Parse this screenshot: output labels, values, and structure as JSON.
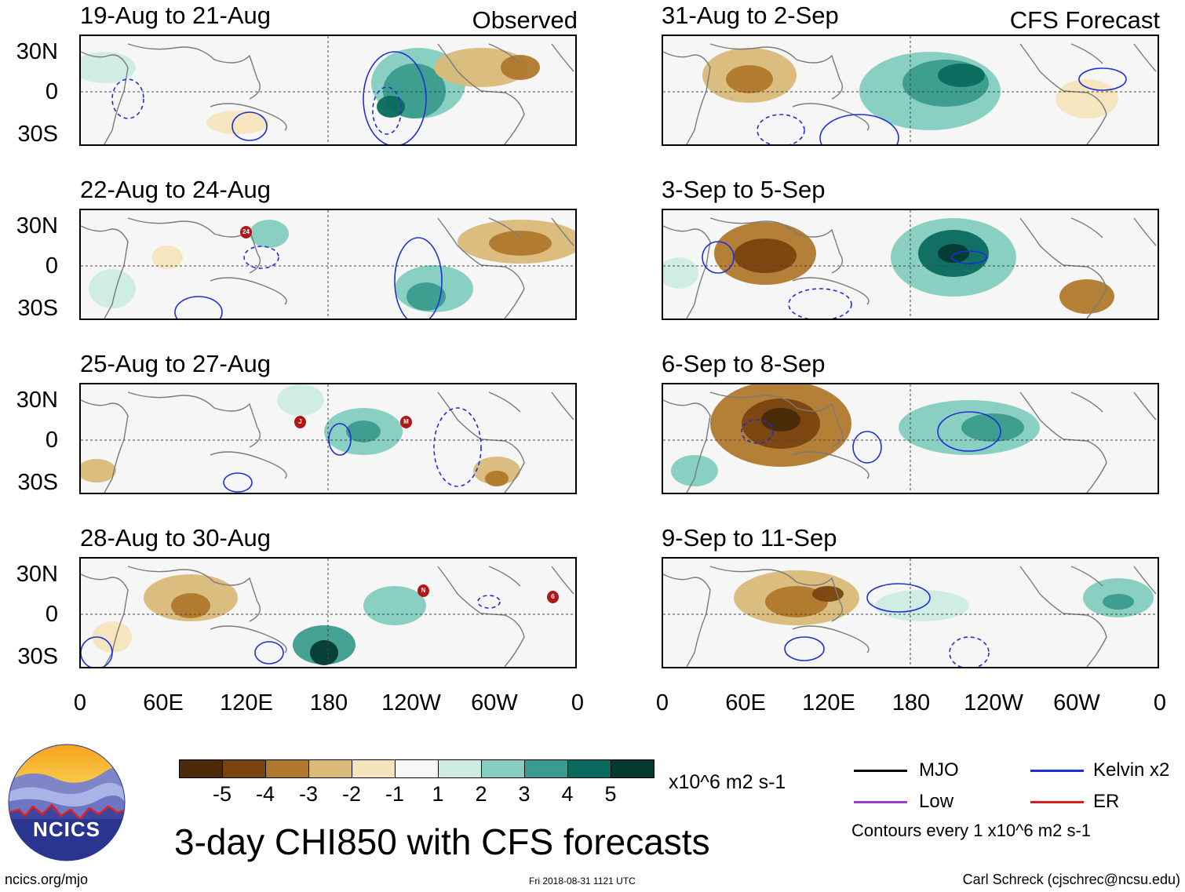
{
  "panels": {
    "left": [
      {
        "title": "19-Aug to 21-Aug",
        "label": "Observed"
      },
      {
        "title": "22-Aug to 24-Aug",
        "label": ""
      },
      {
        "title": "25-Aug to 27-Aug",
        "label": ""
      },
      {
        "title": "28-Aug to 30-Aug",
        "label": ""
      }
    ],
    "right": [
      {
        "title": "31-Aug to 2-Sep",
        "label": "CFS Forecast"
      },
      {
        "title": "3-Sep to 5-Sep",
        "label": ""
      },
      {
        "title": "6-Sep to 8-Sep",
        "label": ""
      },
      {
        "title": "9-Sep to 11-Sep",
        "label": ""
      }
    ]
  },
  "axes": {
    "lat_labels": [
      "30N",
      "0",
      "30S"
    ],
    "lon_labels": [
      "0",
      "60E",
      "120E",
      "180",
      "120W",
      "60W",
      "0"
    ]
  },
  "storm_markers": [
    {
      "panel": "left-2",
      "text": "24"
    },
    {
      "panel": "left-3",
      "text": "J"
    },
    {
      "panel": "left-3",
      "text": "M"
    },
    {
      "panel": "left-4",
      "text": "N"
    },
    {
      "panel": "left-4",
      "text": "6"
    }
  ],
  "colorbar": {
    "colors": [
      "#4a2a08",
      "#7a4510",
      "#b0782c",
      "#d9ba78",
      "#f4e5bd",
      "#f7f7f7",
      "#cdece4",
      "#84cdbf",
      "#3a9c8e",
      "#0b6a5e",
      "#053a31"
    ],
    "labels": [
      "-5",
      "-4",
      "-3",
      "-2",
      "-1",
      "1",
      "2",
      "3",
      "4",
      "5"
    ],
    "units": "x10^6 m2 s-1"
  },
  "title": "3-day CHI850 with CFS forecasts",
  "legend": [
    {
      "label": "MJO",
      "color": "#000000"
    },
    {
      "label": "Kelvin x2",
      "color": "#1f2fd6"
    },
    {
      "label": "Low",
      "color": "#9a3fd6"
    },
    {
      "label": "ER",
      "color": "#d61f1f"
    }
  ],
  "contour_note": "Contours every 1 x10^6 m2 s-1",
  "logo_text": "NCICS",
  "footer": {
    "left": "ncics.org/mjo",
    "center": "Fri 2018-08-31 1121 UTC",
    "right": "Carl Schreck (cjschrec@ncsu.edu)"
  }
}
